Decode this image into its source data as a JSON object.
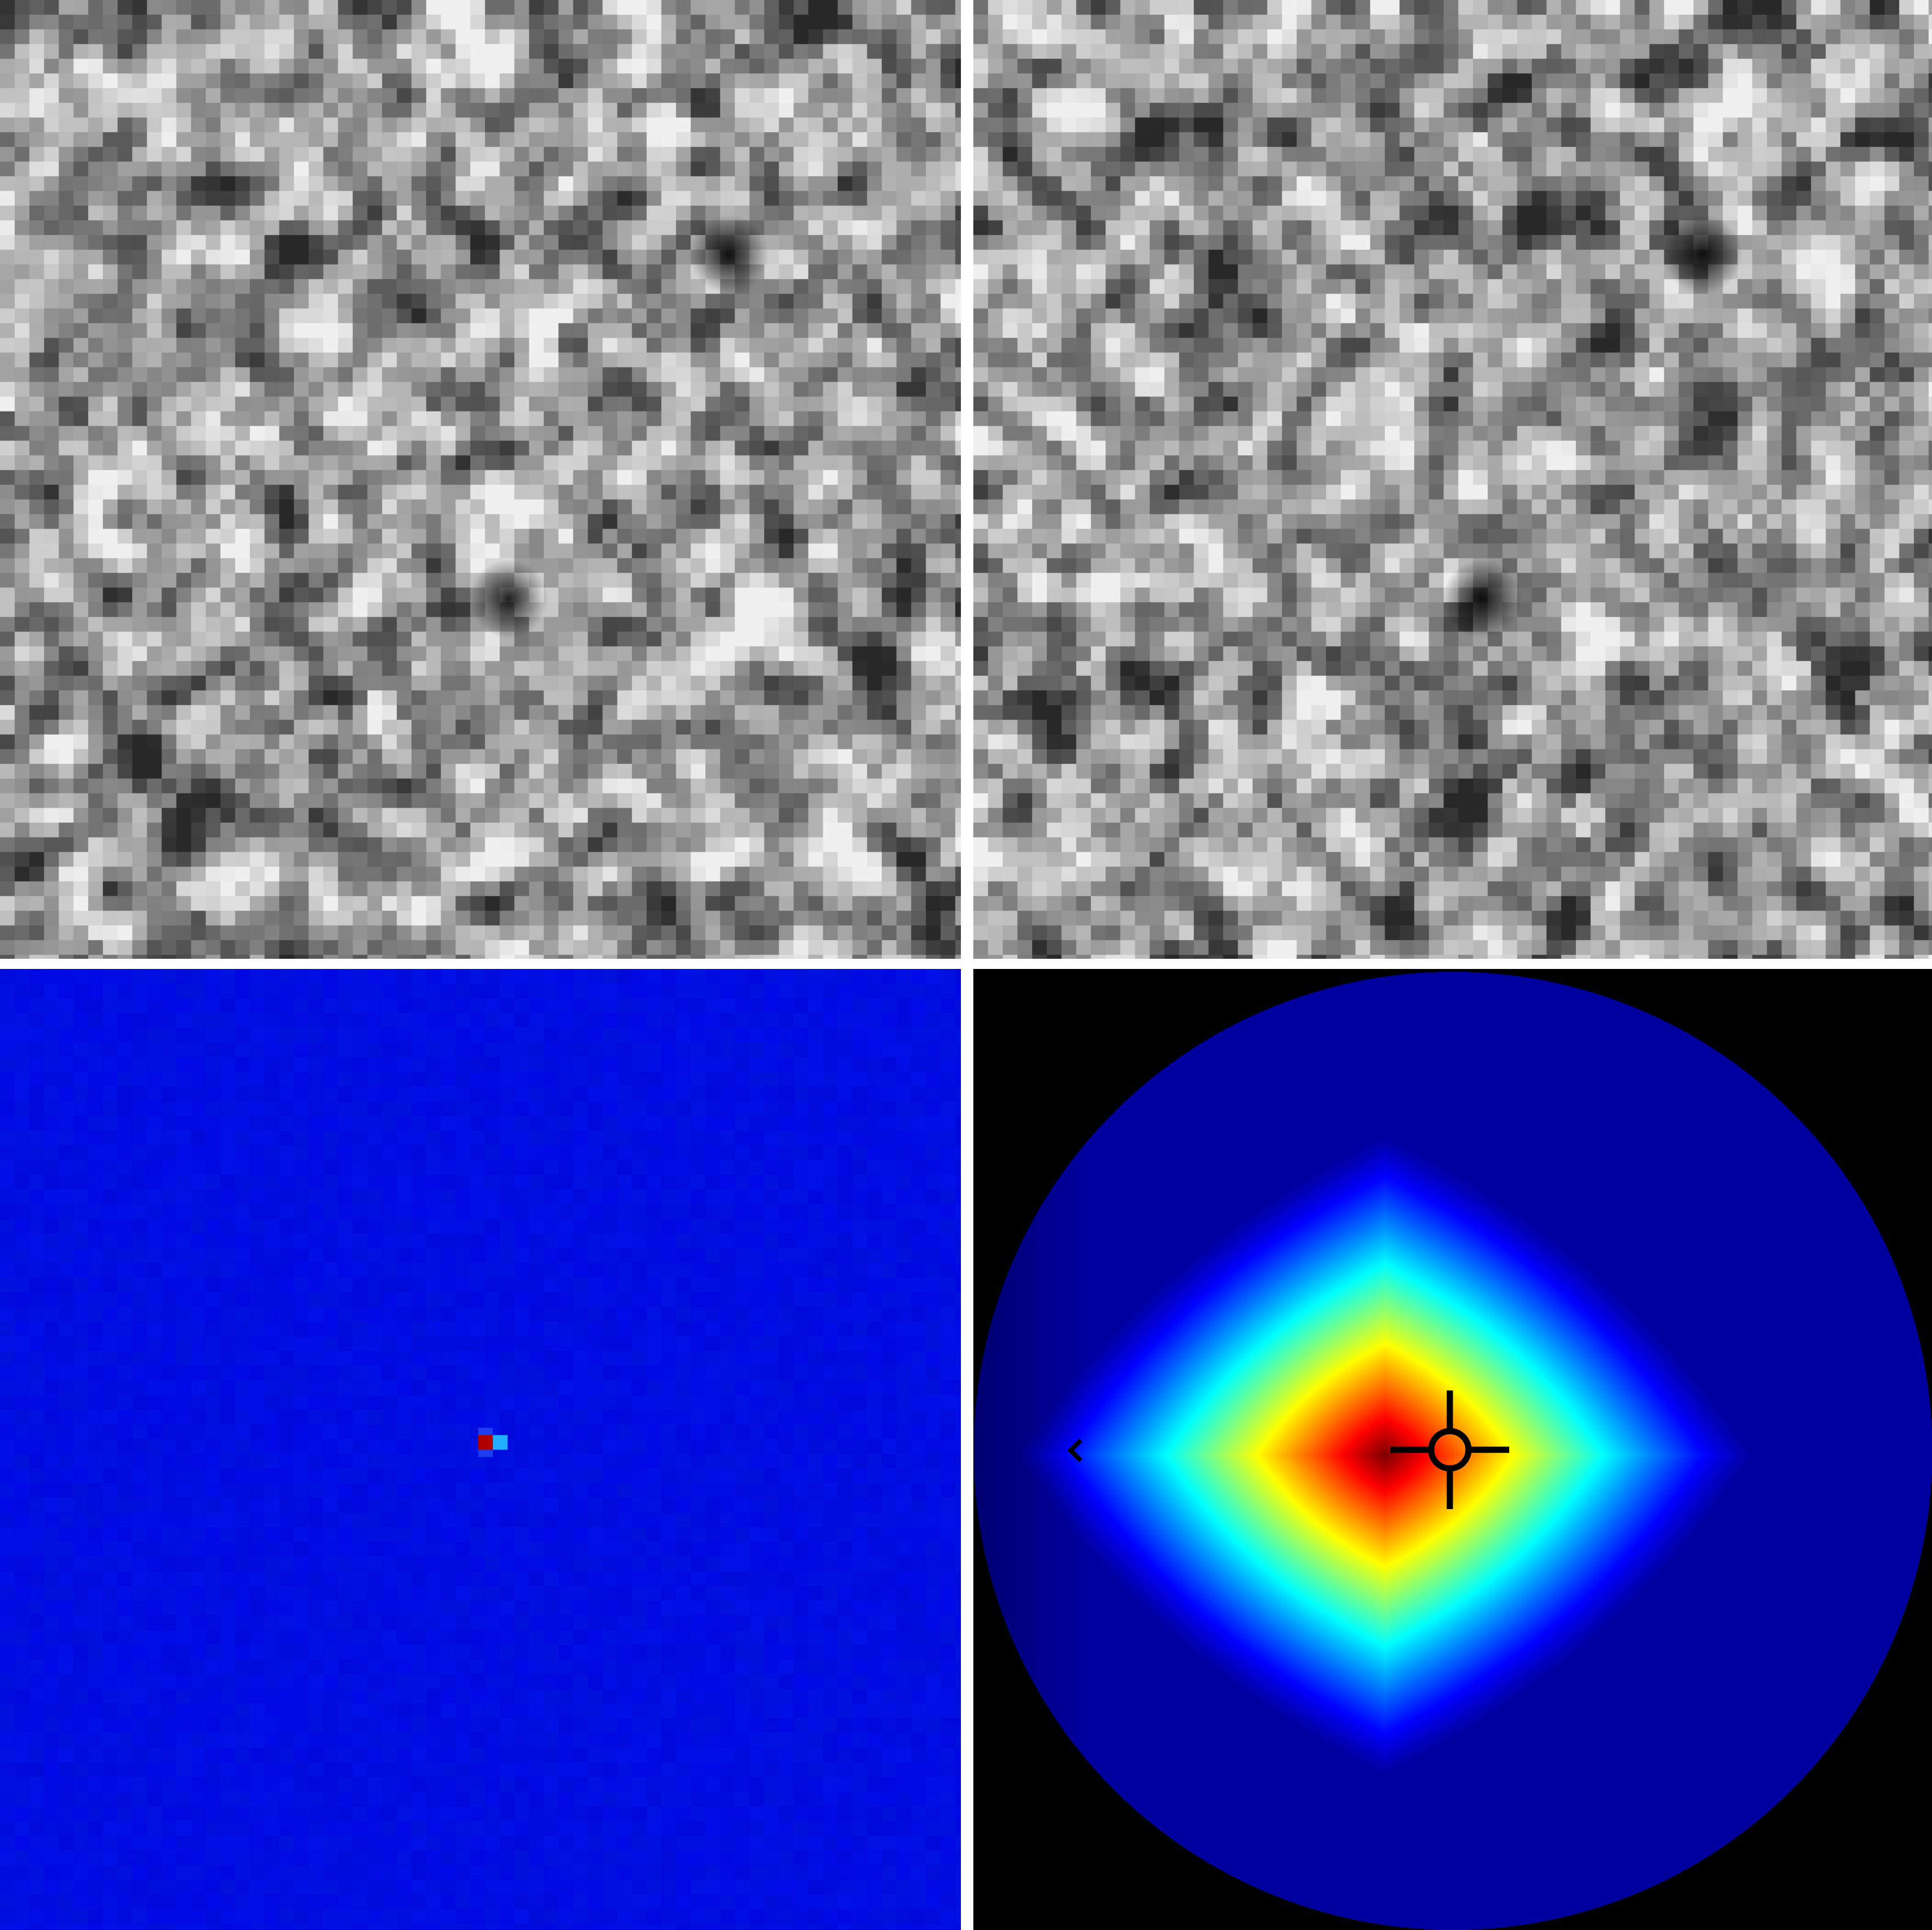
{
  "panels": {
    "image_a": {
      "kind": "grayscale-noise",
      "seed": 11
    },
    "image_b": {
      "kind": "grayscale-noise",
      "seed": 29
    },
    "residual": {
      "kind": "colormap-jet",
      "background": "#0a0ae6",
      "peak_color": "#b00000",
      "side_color": "#20b0ff"
    },
    "correlation": {
      "kind": "colormap-jet-disk",
      "outside": "#000000"
    }
  },
  "markers": {
    "crosshair": {
      "icon": "crosshair-target-icon",
      "color": "#000000"
    },
    "edge": {
      "icon": "left-arrow-icon",
      "color": "#000000"
    }
  }
}
